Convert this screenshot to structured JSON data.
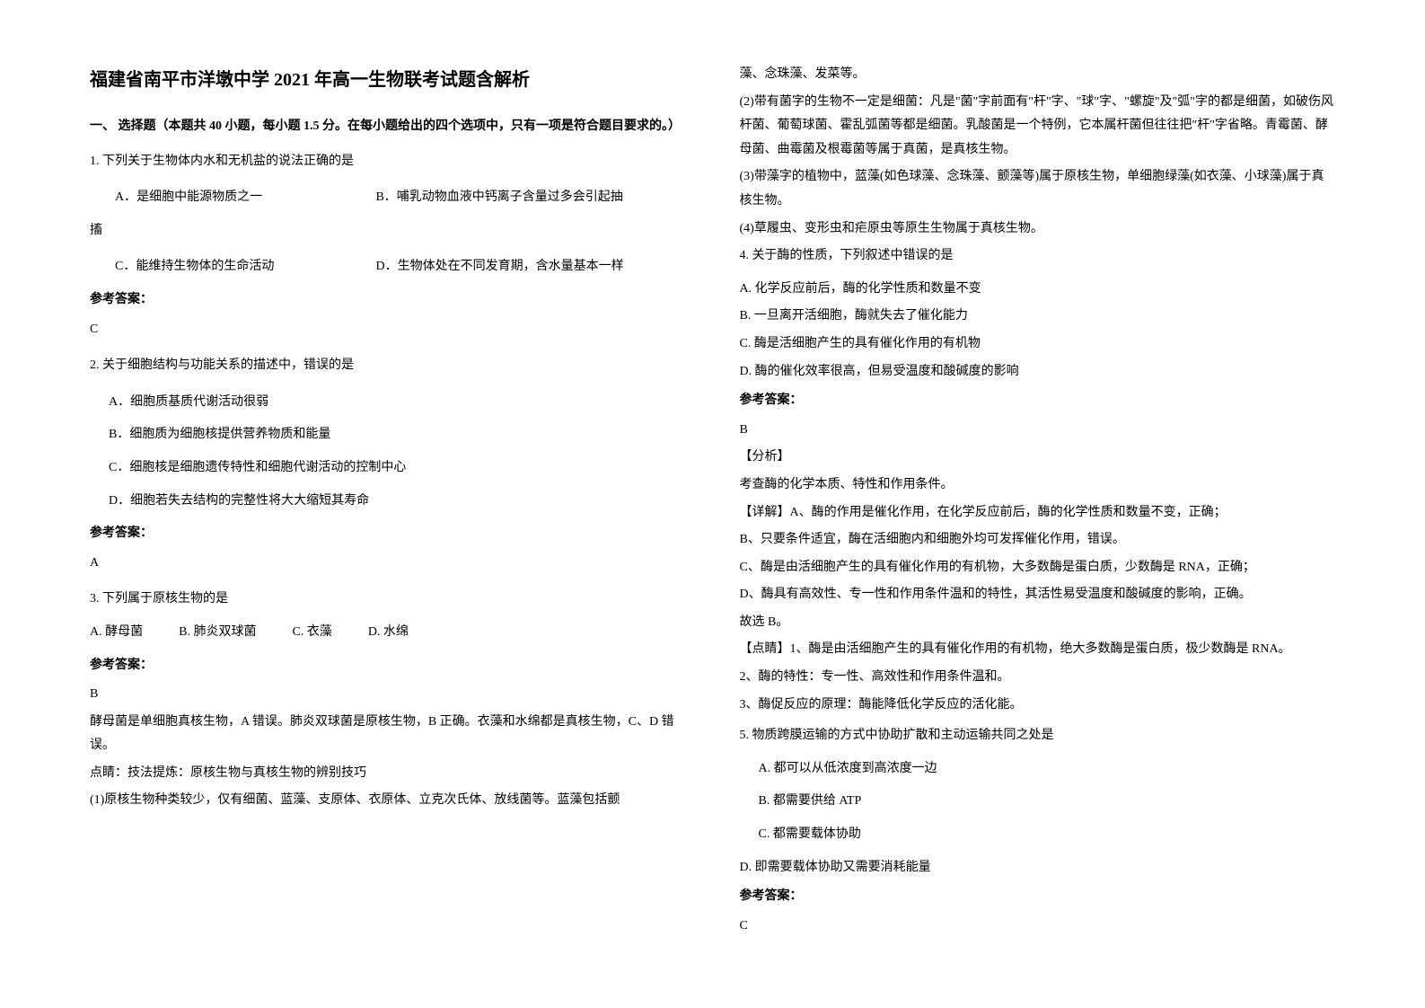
{
  "title": "福建省南平市洋墩中学 2021 年高一生物联考试题含解析",
  "section1_header": "一、 选择题（本题共 40 小题，每小题 1.5 分。在每小题给出的四个选项中，只有一项是符合题目要求的。）",
  "q1": {
    "text": "1. 下列关于生物体内水和无机盐的说法正确的是",
    "optA": "A．是细胞中能源物质之一",
    "optB": "B．哺乳动物血液中钙离子含量过多会引起抽",
    "optB_cont": "搐",
    "optC": "C．能维持生物体的生命活动",
    "optD": "D．生物体处在不同发育期，含水量基本一样",
    "answer_label": "参考答案：",
    "answer": "C"
  },
  "q2": {
    "text": "2. 关于细胞结构与功能关系的描述中，错误的是",
    "optA": "A．细胞质基质代谢活动很弱",
    "optB": "B．细胞质为细胞核提供营养物质和能量",
    "optC": "C．细胞核是细胞遗传特性和细胞代谢活动的控制中心",
    "optD": "D．细胞若失去结构的完整性将大大缩短其寿命",
    "answer_label": "参考答案：",
    "answer": "A"
  },
  "q3": {
    "text": "3. 下列属于原核生物的是",
    "optA": "A. 酵母菌",
    "optB": "B. 肺炎双球菌",
    "optC": "C. 衣藻",
    "optD": "D. 水绵",
    "answer_label": "参考答案：",
    "answer": "B",
    "exp1": "酵母菌是单细胞真核生物，A 错误。肺炎双球菌是原核生物，B 正确。衣藻和水绵都是真核生物，C、D 错误。",
    "exp2": "点睛：技法提炼：原核生物与真核生物的辨别技巧",
    "exp3": "(1)原核生物种类较少，仅有细菌、蓝藻、支原体、衣原体、立克次氏体、放线菌等。蓝藻包括颤",
    "exp3_cont": "藻、念珠藻、发菜等。",
    "exp4": "(2)带有菌字的生物不一定是细菌：凡是\"菌\"字前面有\"杆\"字、\"球\"字、\"螺旋\"及\"弧\"字的都是细菌，如破伤风杆菌、葡萄球菌、霍乱弧菌等都是细菌。乳酸菌是一个特例，它本属杆菌但往往把\"杆\"字省略。青霉菌、酵母菌、曲霉菌及根霉菌等属于真菌，是真核生物。",
    "exp5": "(3)带藻字的植物中，蓝藻(如色球藻、念珠藻、颤藻等)属于原核生物，单细胞绿藻(如衣藻、小球藻)属于真核生物。",
    "exp6": "(4)草履虫、变形虫和疟原虫等原生生物属于真核生物。"
  },
  "q4": {
    "text": "4. 关于酶的性质，下列叙述中错误的是",
    "optA": "A.  化学反应前后，酶的化学性质和数量不变",
    "optB": "B.  一旦离开活细胞，酶就失去了催化能力",
    "optC": "C.  酶是活细胞产生的具有催化作用的有机物",
    "optD": "D.  酶的催化效率很高，但易受温度和酸碱度的影响",
    "answer_label": "参考答案：",
    "answer": "B",
    "analysis_label": "【分析】",
    "analysis": "考查酶的化学本质、特性和作用条件。",
    "detail_label": "【详解】",
    "detailA": "A、酶的作用是催化作用，在化学反应前后，酶的化学性质和数量不变，正确；",
    "detailB": "B、只要条件适宜，酶在活细胞内和细胞外均可发挥催化作用，错误。",
    "detailC": "C、酶是由活细胞产生的具有催化作用的有机物，大多数酶是蛋白质，少数酶是 RNA，正确；",
    "detailD": "D、酶具有高效性、专一性和作用条件温和的特性，其活性易受温度和酸碱度的影响，正确。",
    "conclusion": "故选 B。",
    "point_label": "【点睛】",
    "point1": "1、酶是由活细胞产生的具有催化作用的有机物，绝大多数酶是蛋白质，极少数酶是 RNA。",
    "point2": "2、酶的特性：专一性、高效性和作用条件温和。",
    "point3": "3、酶促反应的原理：酶能降低化学反应的活化能。"
  },
  "q5": {
    "text": "5. 物质跨膜运输的方式中协助扩散和主动运输共同之处是",
    "optA": "A. 都可以从低浓度到高浓度一边",
    "optB": "B. 都需要供给 ATP",
    "optC": "C. 都需要载体协助",
    "optD": "D. 即需要载体协助又需要消耗能量",
    "answer_label": "参考答案：",
    "answer": "C"
  }
}
